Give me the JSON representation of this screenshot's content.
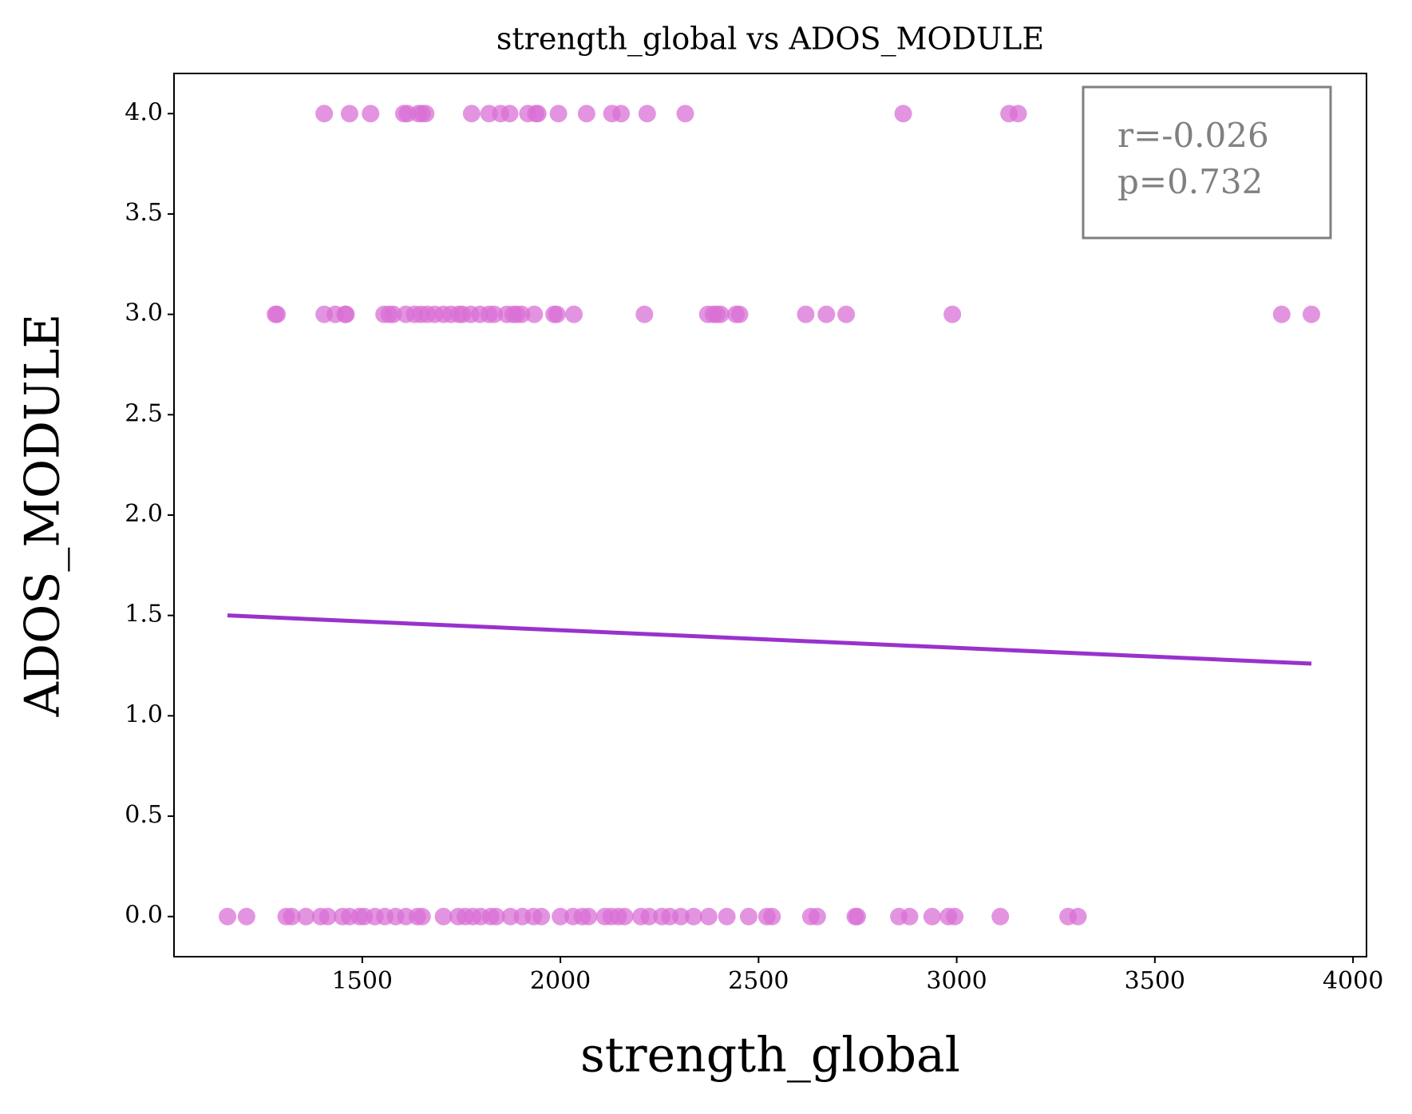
{
  "chart_data": {
    "type": "scatter",
    "title": "strength_global vs ADOS_MODULE",
    "x_label": "strength_global",
    "y_label": "ADOS_MODULE",
    "annotations": [
      "r=-0.026",
      "p=0.732"
    ],
    "xlim": [
      1025,
      4034
    ],
    "ylim": [
      -0.2,
      4.2
    ],
    "xticks": [
      1500,
      2000,
      2500,
      3000,
      3500,
      4000
    ],
    "yticks": [
      {
        "value": 0,
        "label": "0.0"
      },
      0.5,
      {
        "value": 1,
        "label": "1.0"
      },
      1.5,
      {
        "value": 2,
        "label": "2.0"
      },
      2.5,
      {
        "value": 3,
        "label": "3.0"
      },
      3.5,
      {
        "value": 4,
        "label": "4.0"
      }
    ],
    "grid": false,
    "series": [
      {
        "type": "scatter",
        "color": "#da70d6",
        "x": [
          1404,
          1468,
          1521,
          1605,
          1614,
          1642,
          1651,
          1660,
          1776,
          1820,
          1849,
          1872,
          1918,
          1938,
          1943,
          1995,
          2066,
          2130,
          2153,
          2219,
          2315,
          2865,
          3132,
          3155,
          1281,
          1285,
          1404,
          1432,
          1457,
          1459,
          1555,
          1568,
          1578,
          1610,
          1632,
          1648,
          1664,
          1683,
          1705,
          1724,
          1744,
          1753,
          1774,
          1797,
          1820,
          1833,
          1865,
          1881,
          1890,
          1902,
          1934,
          1984,
          1991,
          2034,
          2212,
          2372,
          2386,
          2395,
          2404,
          2443,
          2452,
          2619,
          2671,
          2721,
          2989,
          3820,
          3895,
          1160,
          1208,
          1308,
          1322,
          1358,
          1395,
          1413,
          1450,
          1468,
          1493,
          1505,
          1532,
          1557,
          1584,
          1610,
          1639,
          1651,
          1705,
          1742,
          1760,
          1779,
          1799,
          1824,
          1838,
          1874,
          1904,
          1932,
          1952,
          2000,
          2032,
          2055,
          2071,
          2112,
          2128,
          2146,
          2162,
          2203,
          2224,
          2256,
          2276,
          2304,
          2336,
          2374,
          2420,
          2475,
          2521,
          2534,
          2632,
          2648,
          2744,
          2749,
          2854,
          2881,
          2938,
          2979,
          2995,
          3110,
          3281,
          3306
        ],
        "values": [
          4,
          4,
          4,
          4,
          4,
          4,
          4,
          4,
          4,
          4,
          4,
          4,
          4,
          4,
          4,
          4,
          4,
          4,
          4,
          4,
          4,
          4,
          4,
          4,
          3,
          3,
          3,
          3,
          3,
          3,
          3,
          3,
          3,
          3,
          3,
          3,
          3,
          3,
          3,
          3,
          3,
          3,
          3,
          3,
          3,
          3,
          3,
          3,
          3,
          3,
          3,
          3,
          3,
          3,
          3,
          3,
          3,
          3,
          3,
          3,
          3,
          3,
          3,
          3,
          3,
          3,
          3,
          0,
          0,
          0,
          0,
          0,
          0,
          0,
          0,
          0,
          0,
          0,
          0,
          0,
          0,
          0,
          0,
          0,
          0,
          0,
          0,
          0,
          0,
          0,
          0,
          0,
          0,
          0,
          0,
          0,
          0,
          0,
          0,
          0,
          0,
          0,
          0,
          0,
          0,
          0,
          0,
          0,
          0,
          0,
          0,
          0,
          0,
          0,
          0,
          0,
          0,
          0,
          0,
          0,
          0,
          0,
          0,
          0,
          0,
          0
        ]
      },
      {
        "type": "line",
        "color": "#9932cc",
        "x": [
          1160,
          3895
        ],
        "values": [
          1.5,
          1.26
        ]
      }
    ]
  }
}
